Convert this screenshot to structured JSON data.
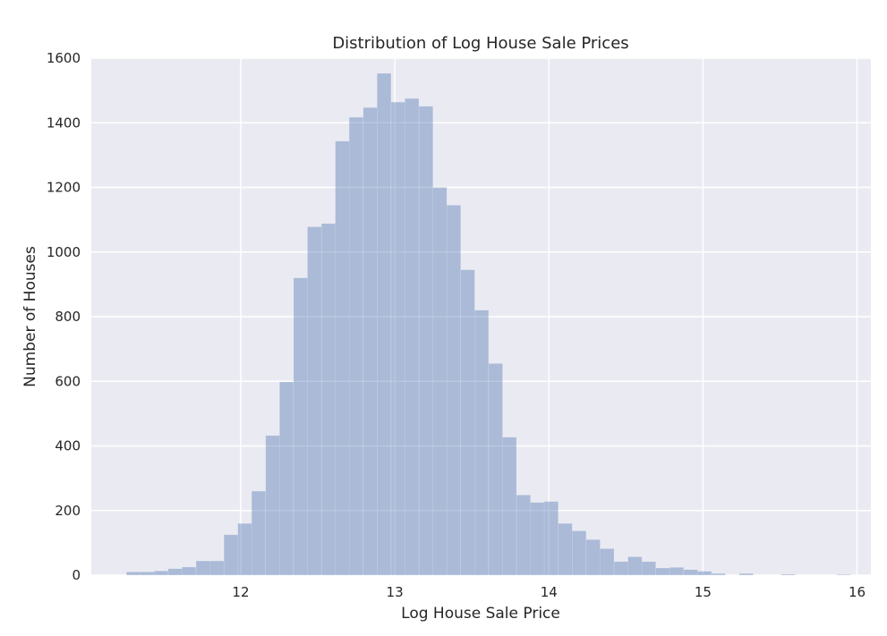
{
  "chart_data": {
    "type": "bar",
    "title": "Distribution of Log House Sale Prices",
    "xlabel": "Log House Sale Price",
    "ylabel": "Number of Houses",
    "xlim": [
      11.03,
      16.09
    ],
    "ylim": [
      0,
      1600
    ],
    "xticks": [
      "12",
      "13",
      "14",
      "15",
      "16"
    ],
    "yticks": [
      "0",
      "200",
      "400",
      "600",
      "800",
      "1000",
      "1200",
      "1400",
      "1600"
    ],
    "grid": true,
    "bin_width": 0.0904,
    "bin_starts": [
      11.258,
      11.348,
      11.438,
      11.529,
      11.619,
      11.71,
      11.8,
      11.891,
      11.981,
      12.071,
      12.162,
      12.252,
      12.343,
      12.433,
      12.524,
      12.614,
      12.704,
      12.795,
      12.885,
      12.976,
      13.066,
      13.157,
      13.247,
      13.337,
      13.428,
      13.518,
      13.609,
      13.699,
      13.79,
      13.88,
      13.97,
      14.061,
      14.151,
      14.242,
      14.332,
      14.423,
      14.513,
      14.603,
      14.694,
      14.784,
      14.875,
      14.965,
      15.055,
      15.146,
      15.236,
      15.327,
      15.417,
      15.508,
      15.598,
      15.688,
      15.779,
      15.869
    ],
    "values": [
      10,
      10,
      13,
      20,
      25,
      44,
      44,
      125,
      160,
      260,
      432,
      598,
      920,
      1078,
      1088,
      1343,
      1417,
      1447,
      1553,
      1464,
      1475,
      1451,
      1200,
      1145,
      945,
      820,
      655,
      427,
      248,
      225,
      228,
      160,
      137,
      110,
      82,
      42,
      57,
      42,
      22,
      24,
      17,
      12,
      5,
      0,
      5,
      0,
      0,
      3,
      0,
      0,
      0,
      2
    ],
    "colors": {
      "bar": "#4c72b0",
      "background": "#eaeaf2",
      "grid": "#ffffff"
    }
  }
}
